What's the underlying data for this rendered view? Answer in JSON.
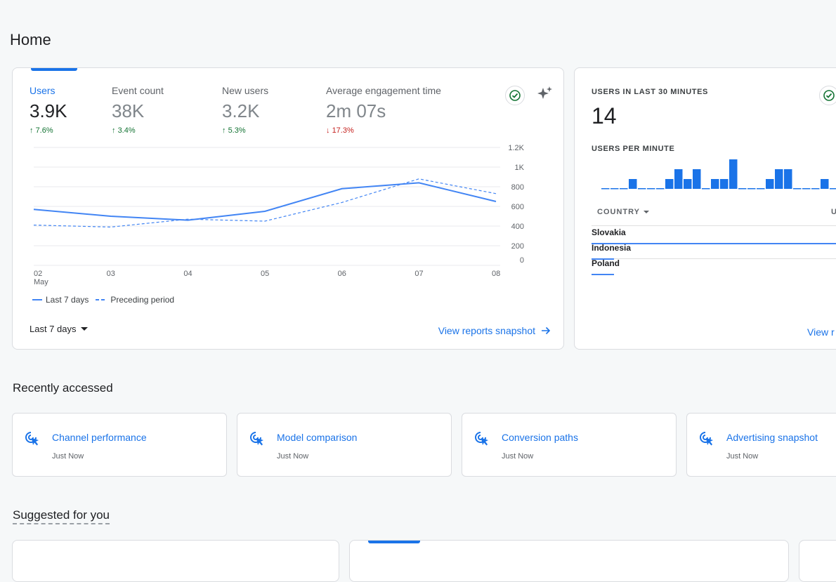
{
  "page": {
    "title": "Home"
  },
  "metrics": [
    {
      "label": "Users",
      "value": "3.9K",
      "change": "7.6%",
      "direction": "up"
    },
    {
      "label": "Event count",
      "value": "38K",
      "change": "3.4%",
      "direction": "up"
    },
    {
      "label": "New users",
      "value": "3.2K",
      "change": "5.3%",
      "direction": "up"
    },
    {
      "label": "Average engagement time",
      "value": "2m 07s",
      "change": "17.3%",
      "direction": "down"
    }
  ],
  "chart_data": {
    "type": "line",
    "x": [
      "02",
      "03",
      "04",
      "05",
      "06",
      "07",
      "08"
    ],
    "x_sublabel": "May",
    "y_ticks": [
      "1.2K",
      "1K",
      "800",
      "600",
      "400",
      "200",
      "0"
    ],
    "ylim": [
      0,
      1200
    ],
    "series": [
      {
        "name": "Last 7 days",
        "style": "solid",
        "values": [
          570,
          500,
          460,
          550,
          780,
          840,
          650
        ]
      },
      {
        "name": "Preceding period",
        "style": "dashed",
        "values": [
          410,
          390,
          470,
          450,
          640,
          880,
          730
        ]
      }
    ],
    "grid": true,
    "legend_position": "bottom-left"
  },
  "controls": {
    "date_range": "Last 7 days",
    "view_snapshot": "View reports snapshot"
  },
  "realtime": {
    "label": "USERS IN LAST 30 MINUTES",
    "value": "14",
    "per_minute_label": "USERS PER MINUTE",
    "per_minute_values": [
      0,
      0,
      0,
      1,
      0,
      0,
      0,
      1,
      2,
      1,
      2,
      0,
      1,
      1,
      3,
      0,
      0,
      0,
      1,
      2,
      2,
      0,
      0,
      0,
      1,
      0
    ],
    "country_header": "COUNTRY",
    "users_header_partial": "U",
    "countries": [
      {
        "name": "Slovakia",
        "share": 1.0
      },
      {
        "name": "Indonesia",
        "share": 0.09
      },
      {
        "name": "Poland",
        "share": 0.09
      }
    ],
    "view_link_partial": "View r"
  },
  "recently_accessed": {
    "title": "Recently accessed",
    "items": [
      {
        "title": "Channel performance",
        "subtitle": "Just Now"
      },
      {
        "title": "Model comparison",
        "subtitle": "Just Now"
      },
      {
        "title": "Conversion paths",
        "subtitle": "Just Now"
      },
      {
        "title": "Advertising snapshot",
        "subtitle": "Just Now"
      }
    ]
  },
  "suggested": {
    "title": "Suggested for you"
  },
  "colors": {
    "accent": "#1a73e8",
    "series": "#4285f4",
    "up": "#137333",
    "down": "#c5221f"
  }
}
